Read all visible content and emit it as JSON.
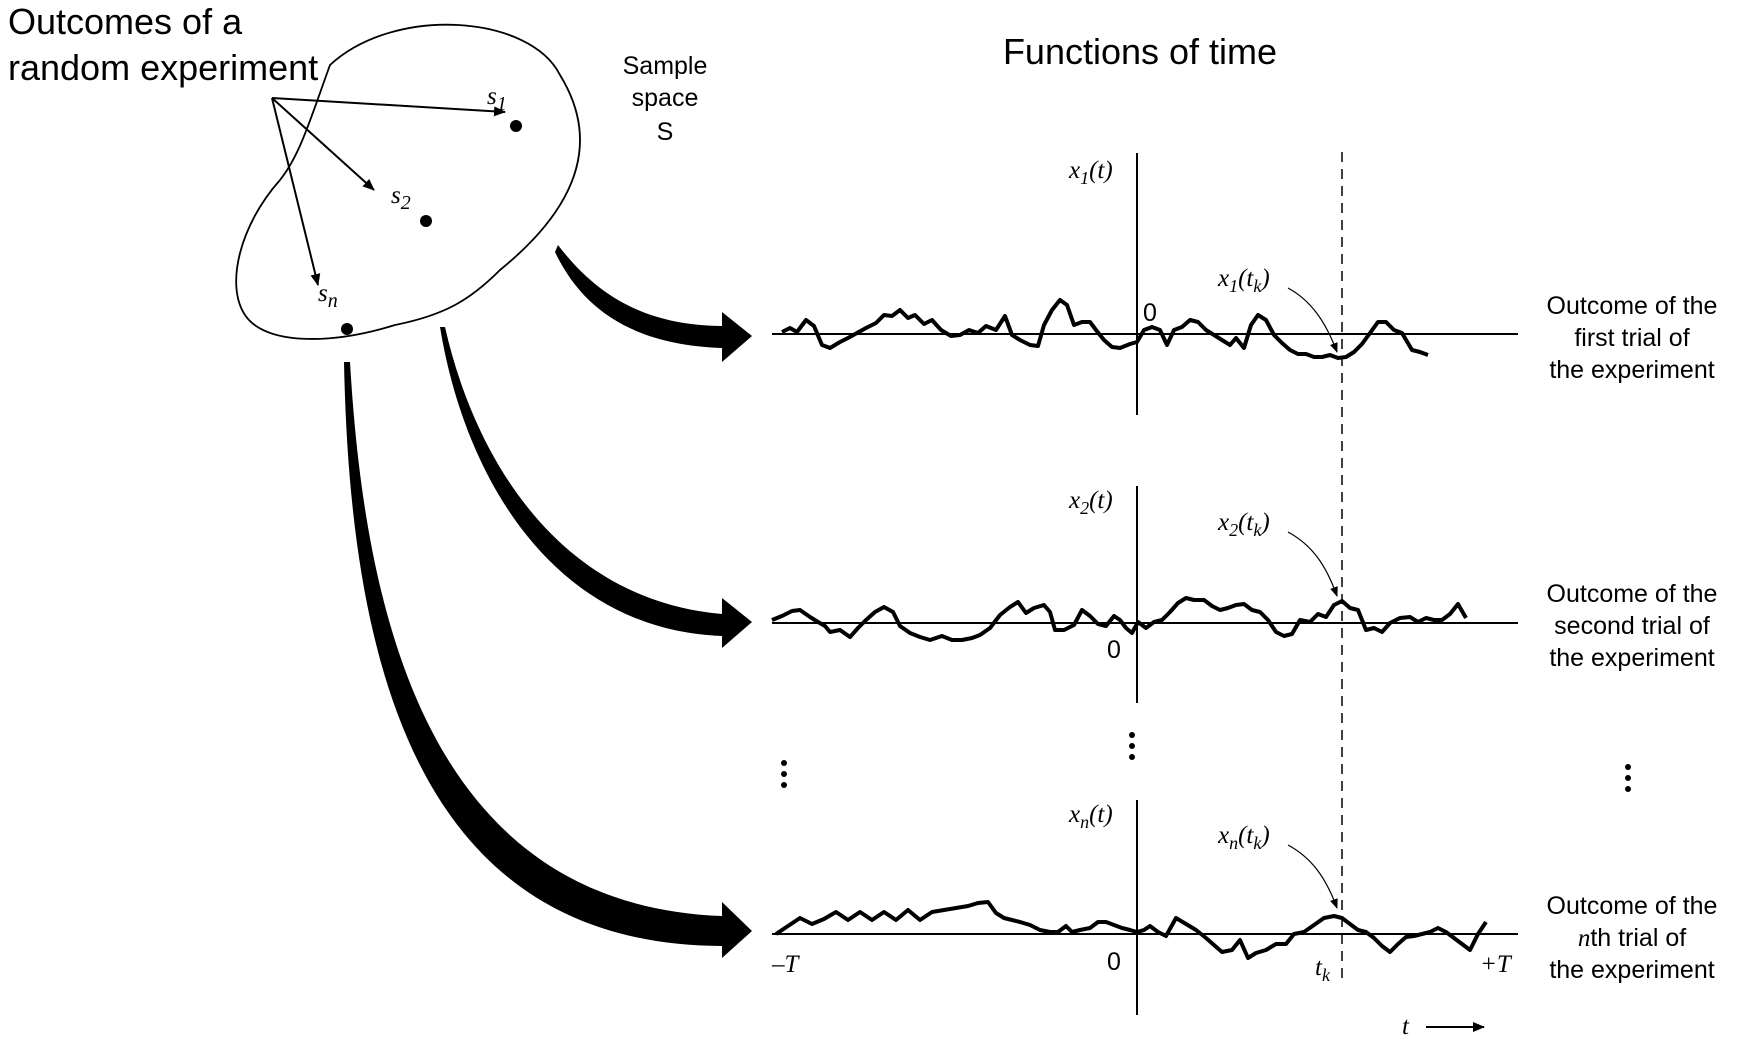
{
  "left_caption": {
    "line1": "Outcomes of a",
    "line2": "random experiment"
  },
  "sample_space": {
    "line1": "Sample",
    "line2": "space",
    "symbol": "S"
  },
  "right_title": "Functions of time",
  "sample_points": [
    {
      "base": "s",
      "sub": "1"
    },
    {
      "base": "s",
      "sub": "2"
    },
    {
      "base": "s",
      "sub": "n"
    }
  ],
  "trials": [
    {
      "y_label": {
        "base": "x",
        "sub": "1",
        "arg": "(t)"
      },
      "point_label": {
        "base": "x",
        "sub": "1",
        "arg_open": "(t",
        "arg_sub": "k",
        "arg_close": ")"
      },
      "zero": "0",
      "caption": [
        "Outcome of the",
        "first trial of",
        "the experiment"
      ]
    },
    {
      "y_label": {
        "base": "x",
        "sub": "2",
        "arg": "(t)"
      },
      "point_label": {
        "base": "x",
        "sub": "2",
        "arg_open": "(t",
        "arg_sub": "k",
        "arg_close": ")"
      },
      "zero": "0",
      "caption": [
        "Outcome of the",
        "second trial of",
        "the experiment"
      ]
    },
    {
      "y_label": {
        "base": "x",
        "sub": "n",
        "arg": "(t)"
      },
      "point_label": {
        "base": "x",
        "sub": "n",
        "arg_open": "(t",
        "arg_sub": "k",
        "arg_close": ")"
      },
      "zero": "0",
      "caption": [
        "Outcome of the",
        "th trial of",
        "the experiment"
      ],
      "caption_prefix": "n"
    }
  ],
  "time_axis": {
    "left_end": "–T",
    "right_end": "+T",
    "tk": {
      "base": "t",
      "sub": "k"
    },
    "t_arrow": "t"
  },
  "colors": {
    "ink": "#000000",
    "background": "#ffffff"
  }
}
